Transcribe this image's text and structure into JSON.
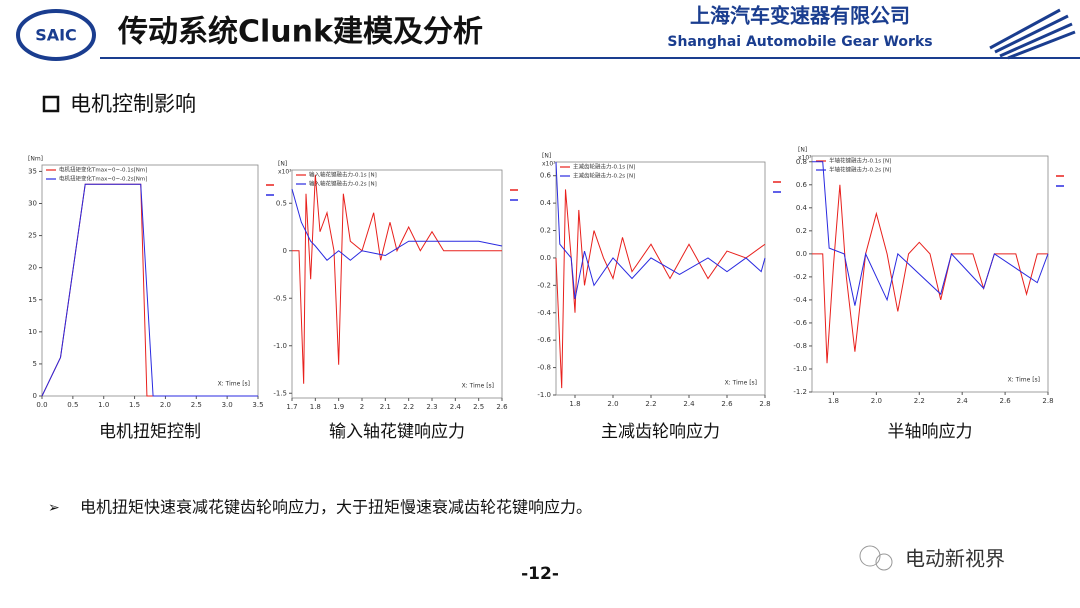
{
  "header": {
    "logo": "SAIC",
    "title": "传动系统Clunk建模及分析",
    "company_cn": "上海汽车变速器有限公司",
    "company_en": "Shanghai Automobile Gear Works"
  },
  "section": "电机控制影响",
  "chart_data": [
    {
      "type": "line",
      "title": "电机扭矩控制",
      "ylabel": "[Nm]",
      "xlabel": "X: Time [s]",
      "xlim": [
        0,
        3.5
      ],
      "ylim": [
        0,
        36
      ],
      "xticks": [
        {
          "value": 0,
          "label": "0.0"
        },
        0.5,
        {
          "value": 1,
          "label": "1.0"
        },
        1.5,
        {
          "value": 2,
          "label": "2.0"
        },
        2.5,
        {
          "value": 3,
          "label": "3.0"
        },
        3.5
      ],
      "yticks": [
        0,
        5,
        10,
        15,
        20,
        25,
        30,
        35
      ],
      "series": [
        {
          "name": "电机扭矩变化Tmax~0~-0.1s[Nm]",
          "color": "#e8201c",
          "x": [
            0,
            0.1,
            0.3,
            0.7,
            1.6,
            1.7,
            1.75,
            3.5
          ],
          "values": [
            0,
            2,
            6,
            33,
            33,
            0,
            0,
            0
          ]
        },
        {
          "name": "电机扭矩变化Tmax~0~-0.2s[Nm]",
          "color": "#2a2ae0",
          "x": [
            0,
            0.1,
            0.3,
            0.7,
            1.6,
            1.8,
            1.85,
            3.5
          ],
          "values": [
            0,
            2,
            6,
            33,
            33,
            0,
            0,
            0
          ]
        }
      ]
    },
    {
      "type": "line",
      "title": "输入轴花键响应力",
      "ylabel": "[N]",
      "multiplier": "x10³",
      "xlabel": "X: Time [s]",
      "xlim": [
        1.7,
        2.6
      ],
      "ylim": [
        -1.55,
        0.85
      ],
      "xticks": [
        1.7,
        1.8,
        1.9,
        2.0,
        2.1,
        2.2,
        2.3,
        2.4,
        2.5,
        2.6
      ],
      "yticks": [
        -1.5,
        {
          "value": -1,
          "label": "-1.0"
        },
        -0.5,
        0,
        0.5
      ],
      "series": [
        {
          "name": "输入轴花键融击力-0.1s [N]",
          "color": "#e8201c",
          "x": [
            1.7,
            1.73,
            1.75,
            1.76,
            1.78,
            1.8,
            1.82,
            1.85,
            1.88,
            1.9,
            1.92,
            1.95,
            2.0,
            2.05,
            2.08,
            2.12,
            2.15,
            2.2,
            2.25,
            2.3,
            2.35,
            2.6
          ],
          "values": [
            0,
            0,
            -1.4,
            0.6,
            -0.3,
            0.8,
            0.2,
            0.4,
            0,
            -1.2,
            0.6,
            0.1,
            0,
            0.4,
            -0.1,
            0.3,
            0,
            0.25,
            0,
            0.2,
            0,
            0
          ]
        },
        {
          "name": "输入轴花键融击力-0.2s [N]",
          "color": "#2a2ae0",
          "x": [
            1.7,
            1.74,
            1.78,
            1.8,
            1.85,
            1.9,
            1.95,
            2.0,
            2.1,
            2.2,
            2.3,
            2.4,
            2.5,
            2.6
          ],
          "values": [
            0.65,
            0.3,
            0.1,
            0.05,
            -0.1,
            0,
            -0.1,
            0,
            -0.05,
            0.1,
            0.1,
            0.1,
            0.1,
            0.05
          ]
        }
      ]
    },
    {
      "type": "line",
      "title": "主减齿轮响应力",
      "ylabel": "[N]",
      "multiplier": "x10³",
      "xlabel": "X: Time [s]",
      "xlim": [
        1.7,
        2.8
      ],
      "ylim": [
        -1.0,
        0.7
      ],
      "xticks": [
        1.8,
        {
          "value": 2,
          "label": "2.0"
        },
        2.2,
        2.4,
        2.6,
        2.8
      ],
      "yticks": [
        {
          "value": -1,
          "label": "-1.0"
        },
        -0.8,
        -0.6,
        -0.4,
        -0.2,
        {
          "value": 0,
          "label": "0.0"
        },
        0.2,
        0.4,
        0.6
      ],
      "series": [
        {
          "name": "主减齿轮融击力-0.1s [N]",
          "color": "#e8201c",
          "x": [
            1.7,
            1.73,
            1.75,
            1.78,
            1.8,
            1.82,
            1.85,
            1.9,
            1.95,
            2.0,
            2.05,
            2.1,
            2.2,
            2.3,
            2.4,
            2.5,
            2.6,
            2.7,
            2.8
          ],
          "values": [
            0,
            -0.95,
            0.5,
            0,
            -0.4,
            0.35,
            -0.2,
            0.2,
            0,
            -0.15,
            0.15,
            -0.1,
            0.1,
            -0.15,
            0.1,
            -0.15,
            0.05,
            0,
            0.1
          ]
        },
        {
          "name": "主减齿轮融击力-0.2s [N]",
          "color": "#2a2ae0",
          "x": [
            1.7,
            1.72,
            1.78,
            1.8,
            1.85,
            1.9,
            2.0,
            2.1,
            2.2,
            2.35,
            2.5,
            2.6,
            2.7,
            2.78,
            2.8
          ],
          "values": [
            0.7,
            0.1,
            0,
            -0.3,
            0.05,
            -0.2,
            0,
            -0.15,
            0,
            -0.12,
            0,
            -0.1,
            0,
            -0.1,
            0
          ]
        }
      ]
    },
    {
      "type": "line",
      "title": "半轴响应力",
      "ylabel": "[N]",
      "multiplier": "x10³",
      "xlabel": "X: Time [s]",
      "xlim": [
        1.7,
        2.8
      ],
      "ylim": [
        -1.2,
        0.85
      ],
      "xticks": [
        1.8,
        {
          "value": 2,
          "label": "2.0"
        },
        2.2,
        2.4,
        2.6,
        2.8
      ],
      "yticks": [
        0.8,
        0.6,
        0.4,
        0.2,
        {
          "value": 0,
          "label": "0.0"
        },
        -0.2,
        -0.4,
        -0.6,
        -0.8,
        {
          "value": -1,
          "label": "-1.0"
        },
        -1.2
      ],
      "series": [
        {
          "name": "半轴花键融击力-0.1s [N]",
          "color": "#e8201c",
          "x": [
            1.7,
            1.75,
            1.77,
            1.8,
            1.83,
            1.86,
            1.9,
            1.95,
            2.0,
            2.05,
            2.1,
            2.15,
            2.2,
            2.25,
            2.3,
            2.35,
            2.45,
            2.5,
            2.55,
            2.65,
            2.7,
            2.75,
            2.8
          ],
          "values": [
            0,
            0,
            -0.95,
            -0.1,
            0.6,
            -0.2,
            -0.85,
            0,
            0.35,
            0,
            -0.5,
            0,
            0.1,
            0,
            -0.4,
            0,
            0,
            -0.3,
            0,
            0,
            -0.35,
            0,
            0
          ]
        },
        {
          "name": "半轴花键融击力-0.2s [N]",
          "color": "#2a2ae0",
          "x": [
            1.7,
            1.75,
            1.78,
            1.85,
            1.9,
            1.95,
            2.05,
            2.1,
            2.3,
            2.35,
            2.5,
            2.55,
            2.75,
            2.8
          ],
          "values": [
            0.8,
            0.8,
            0.05,
            0,
            -0.45,
            0,
            -0.4,
            0,
            -0.35,
            0,
            -0.3,
            0,
            -0.25,
            0
          ]
        }
      ]
    }
  ],
  "bullet": "电机扭矩快速衰减花键齿轮响应力，大于扭矩慢速衰减齿轮花键响应力。",
  "page_number": "-12-",
  "watermark": "电动新视界"
}
